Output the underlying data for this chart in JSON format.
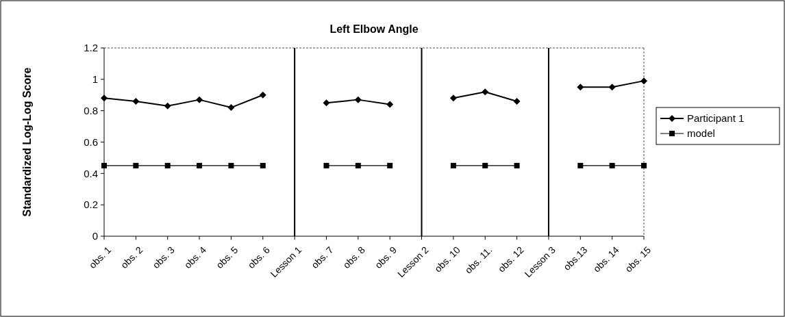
{
  "chart_data": {
    "type": "line",
    "title": "Left Elbow Angle",
    "ylabel": "Standardized Log-Log Score",
    "categories": [
      "obs. 1",
      "obs. 2",
      "obs. 3",
      "obs. 4",
      "obs. 5",
      "obs. 6",
      "Lesson 1",
      "obs. 7",
      "obs. 8",
      "obs. 9",
      "Lesson 2",
      "obs. 10",
      "obs. 11.",
      "obs. 12",
      "Lesson 3",
      "obs.13",
      "obs. 14",
      "obs. 15"
    ],
    "series": [
      {
        "name": "Participant 1",
        "color": "#000000",
        "marker": "diamond",
        "values": [
          0.88,
          0.86,
          0.83,
          0.87,
          0.82,
          0.9,
          null,
          0.85,
          0.87,
          0.84,
          null,
          0.88,
          0.92,
          0.86,
          null,
          0.95,
          0.95,
          0.99
        ]
      },
      {
        "name": "model",
        "color": "#000000",
        "marker": "square",
        "values": [
          0.45,
          0.45,
          0.45,
          0.45,
          0.45,
          0.45,
          null,
          0.45,
          0.45,
          0.45,
          null,
          0.45,
          0.45,
          0.45,
          null,
          0.45,
          0.45,
          0.45
        ]
      }
    ],
    "ylim": [
      0,
      1.2
    ],
    "yticks": [
      0,
      {
        "value": 0.2,
        "label": "0.2"
      },
      {
        "value": 0.4,
        "label": "0.4"
      },
      {
        "value": 0.6,
        "label": "0.6"
      },
      {
        "value": 0.8,
        "label": "0.8"
      },
      1,
      {
        "value": 1.2,
        "label": "1.2"
      }
    ],
    "ref_lines": [
      {
        "axis": "x",
        "value": "Lesson 1",
        "color": "#000000"
      },
      {
        "axis": "x",
        "value": "Lesson 2",
        "color": "#000000"
      },
      {
        "axis": "x",
        "value": "Lesson 3",
        "color": "#000000"
      }
    ],
    "legend": "right",
    "grid": false
  }
}
